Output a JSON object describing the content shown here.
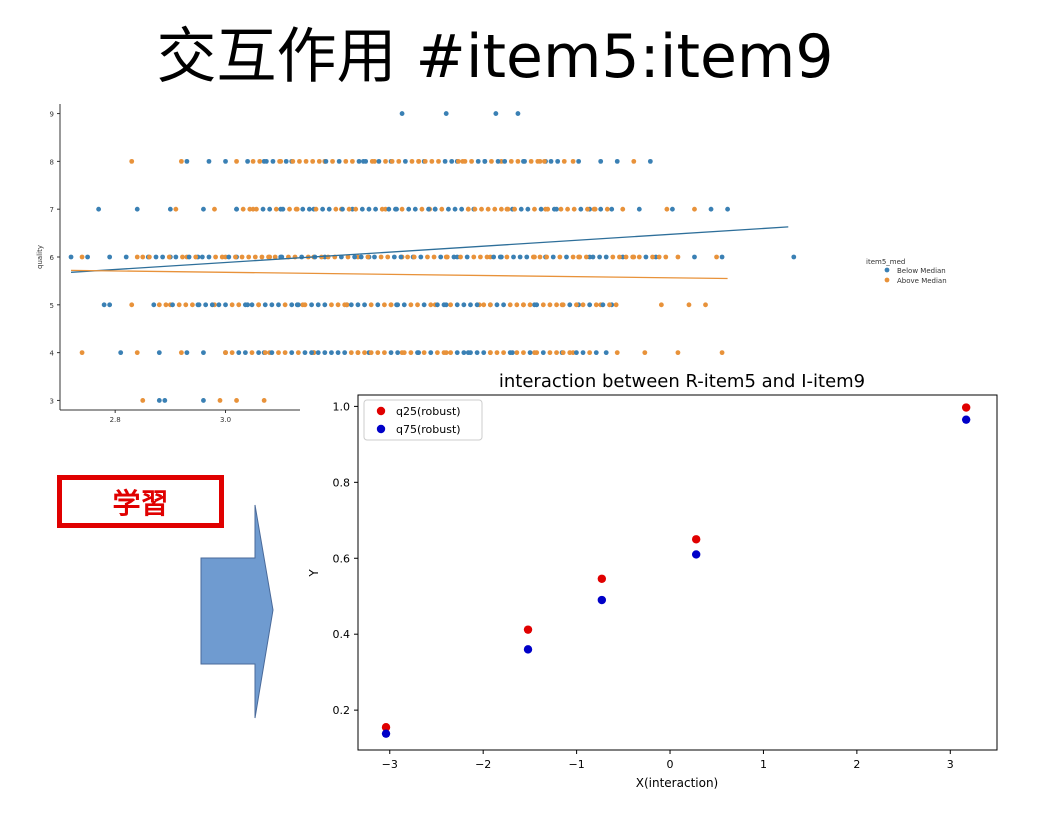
{
  "slide": {
    "title": "交互作用 #item5:item9",
    "label": "学習"
  },
  "colors": {
    "below": "#3a80b4",
    "above": "#e8923a",
    "q25": "#e00000",
    "q75": "#0000c8",
    "arrow_fill": "#6f9bd0",
    "arrow_stroke": "#4a6a9a"
  },
  "chart_data": [
    {
      "type": "scatter",
      "ylabel": "quality",
      "xlabel": "",
      "x_ticks": [
        "2.8",
        "3.0"
      ],
      "y_ticks": [
        "3",
        "4",
        "5",
        "6",
        "7",
        "8",
        "9"
      ],
      "xlim": [
        2.7,
        4.15
      ],
      "ylim": [
        2.8,
        9.2
      ],
      "legend": {
        "title": "item5_med",
        "entries": [
          "Below Median",
          "Above Median"
        ],
        "placement": "right"
      },
      "series": [
        {
          "name": "Below Median",
          "points": [
            [
              3.32,
              9
            ],
            [
              3.4,
              9
            ],
            [
              3.49,
              9
            ],
            [
              3.53,
              9
            ],
            [
              2.93,
              8
            ],
            [
              2.97,
              8
            ],
            [
              3.0,
              8
            ],
            [
              3.04,
              8
            ],
            [
              3.07,
              8
            ],
            [
              3.12,
              8
            ],
            [
              3.18,
              8
            ],
            [
              3.25,
              8
            ],
            [
              3.3,
              8
            ],
            [
              3.36,
              8
            ],
            [
              3.42,
              8
            ],
            [
              3.47,
              8
            ],
            [
              3.54,
              8
            ],
            [
              3.58,
              8
            ],
            [
              3.64,
              8
            ],
            [
              3.68,
              8
            ],
            [
              3.71,
              8
            ],
            [
              3.77,
              8
            ],
            [
              2.77,
              7
            ],
            [
              2.84,
              7
            ],
            [
              2.9,
              7
            ],
            [
              2.96,
              7
            ],
            [
              3.02,
              7
            ],
            [
              3.1,
              7
            ],
            [
              3.16,
              7
            ],
            [
              3.23,
              7
            ],
            [
              3.31,
              7
            ],
            [
              3.38,
              7
            ],
            [
              3.45,
              7
            ],
            [
              3.52,
              7
            ],
            [
              3.6,
              7
            ],
            [
              3.66,
              7
            ],
            [
              3.7,
              7
            ],
            [
              3.75,
              7
            ],
            [
              3.81,
              7
            ],
            [
              3.88,
              7
            ],
            [
              3.91,
              7
            ],
            [
              2.72,
              6
            ],
            [
              2.75,
              6
            ],
            [
              2.79,
              6
            ],
            [
              2.82,
              6
            ],
            [
              2.86,
              6
            ],
            [
              2.9,
              6
            ],
            [
              2.95,
              6
            ],
            [
              3.02,
              6
            ],
            [
              3.1,
              6
            ],
            [
              3.18,
              6
            ],
            [
              3.26,
              6
            ],
            [
              3.34,
              6
            ],
            [
              3.42,
              6
            ],
            [
              3.5,
              6
            ],
            [
              3.58,
              6
            ],
            [
              3.66,
              6
            ],
            [
              3.72,
              6
            ],
            [
              3.78,
              6
            ],
            [
              3.85,
              6
            ],
            [
              3.9,
              6
            ],
            [
              4.03,
              6
            ],
            [
              2.78,
              5
            ],
            [
              2.79,
              5
            ],
            [
              2.87,
              5
            ],
            [
              2.95,
              5
            ],
            [
              3.04,
              5
            ],
            [
              3.13,
              5
            ],
            [
              3.22,
              5
            ],
            [
              3.31,
              5
            ],
            [
              3.4,
              5
            ],
            [
              3.48,
              5
            ],
            [
              3.56,
              5
            ],
            [
              3.64,
              5
            ],
            [
              3.7,
              5
            ],
            [
              2.81,
              4
            ],
            [
              2.88,
              4
            ],
            [
              2.93,
              4
            ],
            [
              2.96,
              4
            ],
            [
              3.0,
              4
            ],
            [
              3.07,
              4
            ],
            [
              3.16,
              4
            ],
            [
              3.26,
              4
            ],
            [
              3.35,
              4
            ],
            [
              3.44,
              4
            ],
            [
              3.52,
              4
            ],
            [
              3.61,
              4
            ],
            [
              3.69,
              4
            ],
            [
              2.88,
              3
            ],
            [
              2.89,
              3
            ],
            [
              2.96,
              3
            ]
          ]
        },
        {
          "name": "Above Median",
          "points": [
            [
              2.83,
              8
            ],
            [
              2.92,
              8
            ],
            [
              3.02,
              8
            ],
            [
              3.1,
              8
            ],
            [
              3.18,
              8
            ],
            [
              3.27,
              8
            ],
            [
              3.35,
              8
            ],
            [
              3.43,
              8
            ],
            [
              3.5,
              8
            ],
            [
              3.57,
              8
            ],
            [
              3.63,
              8
            ],
            [
              3.74,
              8
            ],
            [
              2.91,
              7
            ],
            [
              2.98,
              7
            ],
            [
              3.05,
              7
            ],
            [
              3.13,
              7
            ],
            [
              3.21,
              7
            ],
            [
              3.29,
              7
            ],
            [
              3.37,
              7
            ],
            [
              3.44,
              7
            ],
            [
              3.51,
              7
            ],
            [
              3.58,
              7
            ],
            [
              3.67,
              7
            ],
            [
              3.72,
              7
            ],
            [
              3.8,
              7
            ],
            [
              3.85,
              7
            ],
            [
              2.74,
              6
            ],
            [
              2.84,
              6
            ],
            [
              2.93,
              6
            ],
            [
              3.0,
              6
            ],
            [
              3.08,
              6
            ],
            [
              3.16,
              6
            ],
            [
              3.24,
              6
            ],
            [
              3.32,
              6
            ],
            [
              3.4,
              6
            ],
            [
              3.48,
              6
            ],
            [
              3.56,
              6
            ],
            [
              3.64,
              6
            ],
            [
              3.74,
              6
            ],
            [
              3.82,
              6
            ],
            [
              3.89,
              6
            ],
            [
              2.83,
              5
            ],
            [
              2.9,
              5
            ],
            [
              2.98,
              5
            ],
            [
              3.06,
              5
            ],
            [
              3.14,
              5
            ],
            [
              3.22,
              5
            ],
            [
              3.3,
              5
            ],
            [
              3.38,
              5
            ],
            [
              3.46,
              5
            ],
            [
              3.54,
              5
            ],
            [
              3.61,
              5
            ],
            [
              3.68,
              5
            ],
            [
              3.79,
              5
            ],
            [
              3.84,
              5
            ],
            [
              3.87,
              5
            ],
            [
              2.74,
              4
            ],
            [
              2.84,
              4
            ],
            [
              2.92,
              4
            ],
            [
              3.0,
              4
            ],
            [
              3.08,
              4
            ],
            [
              3.16,
              4
            ],
            [
              3.24,
              4
            ],
            [
              3.32,
              4
            ],
            [
              3.4,
              4
            ],
            [
              3.48,
              4
            ],
            [
              3.56,
              4
            ],
            [
              3.63,
              4
            ],
            [
              3.71,
              4
            ],
            [
              3.76,
              4
            ],
            [
              3.82,
              4
            ],
            [
              3.9,
              4
            ],
            [
              2.85,
              3
            ],
            [
              2.99,
              3
            ],
            [
              3.02,
              3
            ],
            [
              3.07,
              3
            ]
          ]
        }
      ],
      "fit_lines": [
        {
          "name": "Below Median",
          "x": [
            2.72,
            4.02
          ],
          "y": [
            5.68,
            6.63
          ]
        },
        {
          "name": "Above Median",
          "x": [
            2.72,
            3.91
          ],
          "y": [
            5.72,
            5.55
          ]
        }
      ]
    },
    {
      "type": "scatter",
      "title": "interaction between R-item5 and I-item9",
      "xlabel": "X(interaction)",
      "ylabel": "Y",
      "xlim": [
        -3.34,
        3.5
      ],
      "ylim": [
        0.095,
        1.03
      ],
      "x_ticks": [
        "−3",
        "−2",
        "−1",
        "0",
        "1",
        "2",
        "3"
      ],
      "x_tick_values": [
        -3,
        -2,
        -1,
        0,
        1,
        2,
        3
      ],
      "y_ticks": [
        "0.2",
        "0.4",
        "0.6",
        "0.8",
        "1.0"
      ],
      "y_tick_values": [
        0.2,
        0.4,
        0.6,
        0.8,
        1.0
      ],
      "legend": {
        "placement": "top-left",
        "entries": [
          "q25(robust)",
          "q75(robust)"
        ]
      },
      "series": [
        {
          "name": "q25(robust)",
          "x": [
            -3.04,
            -1.52,
            -0.73,
            0.28,
            3.17
          ],
          "y": [
            0.155,
            0.412,
            0.546,
            0.65,
            0.997
          ]
        },
        {
          "name": "q75(robust)",
          "x": [
            -3.04,
            -1.52,
            -0.73,
            0.28,
            3.17
          ],
          "y": [
            0.138,
            0.36,
            0.49,
            0.61,
            0.965
          ]
        }
      ]
    }
  ]
}
